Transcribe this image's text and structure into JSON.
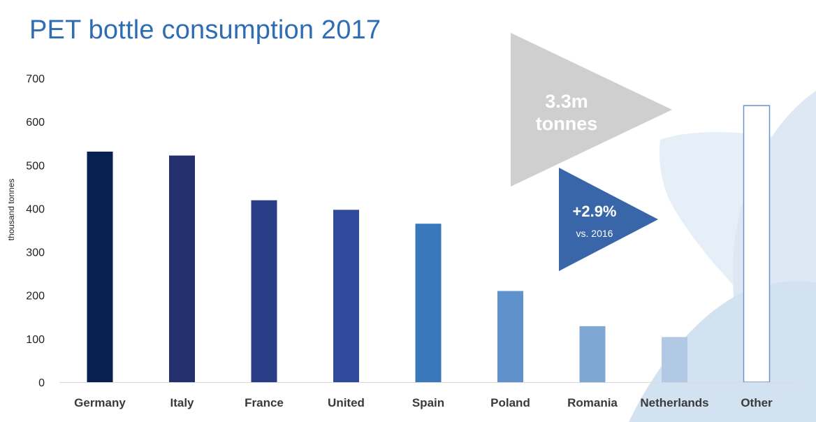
{
  "title": "PET bottle consumption 2017",
  "chart_data": {
    "type": "bar",
    "title": "PET bottle consumption 2017",
    "xlabel": "",
    "ylabel": "thousand tonnes",
    "ylim": [
      0,
      700
    ],
    "yticks": [
      0,
      100,
      200,
      300,
      400,
      500,
      600,
      700
    ],
    "categories": [
      "Germany",
      "Italy",
      "France",
      "United",
      "Spain",
      "Poland",
      "Romania",
      "Netherlands",
      "Other"
    ],
    "values": [
      531,
      522,
      419,
      397,
      365,
      210,
      129,
      104,
      637
    ],
    "bar_colors": [
      "#06214f",
      "#23306e",
      "#283d85",
      "#2f4a9b",
      "#3a78bc",
      "#5f92cc",
      "#7ea7d6",
      "#b2c9e6",
      "#ffffff"
    ],
    "grid": false,
    "legend": "none"
  },
  "callouts": {
    "total_line1": "3.3m",
    "total_line2": "tonnes",
    "growth_value": "+2.9%",
    "growth_note": "vs. 2016"
  },
  "colors": {
    "title": "#2e6db4",
    "total_arrow": "#cfcfcf",
    "growth_arrow": "#3866a8",
    "other_outline": "#6b93c8",
    "decor_light": "#e6eef8",
    "decor_mid": "#d4e3f2"
  }
}
